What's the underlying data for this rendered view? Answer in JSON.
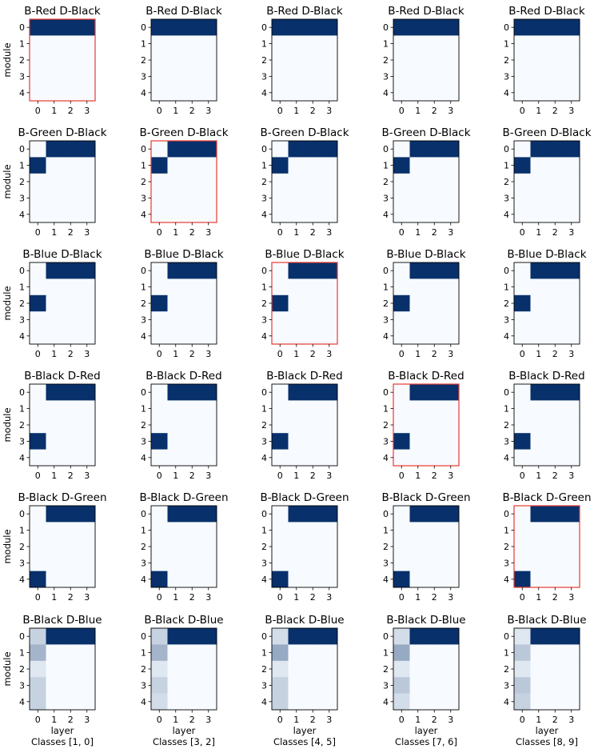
{
  "figure": {
    "row_titles": [
      "B-Red  D-Black",
      "B-Green  D-Black",
      "B-Blue  D-Black",
      "B-Black  D-Red",
      "B-Black  D-Green",
      "B-Black  D-Blue"
    ],
    "ylabel": "module",
    "xlabel": "layer",
    "column_captions": [
      "Classes [1, 0]",
      "Classes [3, 2]",
      "Classes [4, 5]",
      "Classes [7, 6]",
      "Classes [8, 9]"
    ],
    "highlight_color": "#e8392f",
    "colormap": [
      "#f7fbff",
      "#08306b"
    ],
    "highlighted_panels": [
      [
        0,
        0
      ],
      [
        1,
        1
      ],
      [
        2,
        2
      ],
      [
        3,
        3
      ],
      [
        4,
        4
      ]
    ]
  },
  "chart_data": {
    "type": "heatmap",
    "x_ticks": [
      "0",
      "1",
      "2",
      "3"
    ],
    "y_ticks": [
      "0",
      "1",
      "2",
      "3",
      "4"
    ],
    "x_label": "layer",
    "y_label": "module",
    "scale": [
      0,
      1
    ],
    "row_patterns": [
      {
        "title": "B-Red  D-Black",
        "values": [
          [
            1,
            1,
            1,
            1
          ],
          [
            0,
            0,
            0,
            0
          ],
          [
            0,
            0,
            0,
            0
          ],
          [
            0,
            0,
            0,
            0
          ],
          [
            0,
            0,
            0,
            0
          ]
        ]
      },
      {
        "title": "B-Green  D-Black",
        "values": [
          [
            0,
            1,
            1,
            1
          ],
          [
            1,
            0,
            0,
            0
          ],
          [
            0,
            0,
            0,
            0
          ],
          [
            0,
            0,
            0,
            0
          ],
          [
            0,
            0,
            0,
            0
          ]
        ]
      },
      {
        "title": "B-Blue  D-Black",
        "values": [
          [
            0,
            1,
            1,
            1
          ],
          [
            0,
            0,
            0,
            0
          ],
          [
            1,
            0,
            0,
            0
          ],
          [
            0,
            0,
            0,
            0
          ],
          [
            0,
            0,
            0,
            0
          ]
        ]
      },
      {
        "title": "B-Black  D-Red",
        "values": [
          [
            0,
            1,
            1,
            1
          ],
          [
            0,
            0,
            0,
            0
          ],
          [
            0,
            0,
            0,
            0
          ],
          [
            1,
            0,
            0,
            0
          ],
          [
            0,
            0,
            0,
            0
          ]
        ]
      },
      {
        "title": "B-Black  D-Green",
        "values": [
          [
            0,
            1,
            1,
            1
          ],
          [
            0,
            0,
            0,
            0
          ],
          [
            0,
            0,
            0,
            0
          ],
          [
            0,
            0,
            0,
            0
          ],
          [
            1,
            0,
            0,
            0
          ]
        ]
      }
    ],
    "blue_row": {
      "title": "B-Black  D-Blue",
      "first_column_by_panel": [
        [
          0.2,
          0.35,
          0.1,
          0.2,
          0.2
        ],
        [
          0.2,
          0.35,
          0.1,
          0.2,
          0.15
        ],
        [
          0.15,
          0.4,
          0.1,
          0.2,
          0.2
        ],
        [
          0.15,
          0.4,
          0.1,
          0.25,
          0.15
        ],
        [
          0.1,
          0.25,
          0.1,
          0.25,
          0.2
        ]
      ]
    }
  }
}
